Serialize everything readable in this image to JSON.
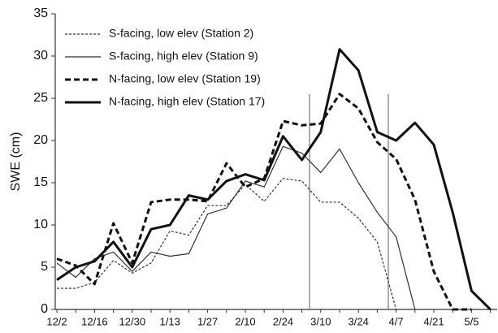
{
  "chart_data": {
    "type": "line",
    "y_label": "SWE (cm)",
    "categories": [
      "12/2",
      null,
      "12/16",
      null,
      "12/30",
      null,
      "1/13",
      null,
      "1/27",
      null,
      "2/10",
      null,
      "2/24",
      null,
      "3/10",
      null,
      "3/24",
      null,
      "4/7",
      null,
      "4/21",
      null,
      "5/5",
      null
    ],
    "ylim": [
      0,
      35
    ],
    "yticks": [
      0,
      5,
      10,
      15,
      20,
      25,
      30,
      35
    ],
    "series": [
      {
        "name": "S-facing, low elev (Station 2)",
        "color": "#333333",
        "style": "dashed",
        "weight": "thin",
        "values": [
          2.5,
          2.5,
          3.2,
          5.8,
          4.3,
          5.5,
          9.3,
          8.8,
          12.3,
          12.3,
          14.8,
          12.8,
          15.5,
          15.2,
          12.7,
          12.7,
          10.8,
          8,
          0,
          null,
          null,
          null,
          null,
          null
        ]
      },
      {
        "name": "S-facing, high elev (Station 9)",
        "color": "#333333",
        "style": "solid",
        "weight": "thin",
        "values": [
          5.5,
          3.8,
          6,
          6.8,
          4.5,
          6.8,
          6.3,
          6.6,
          11.3,
          12,
          15.2,
          14.5,
          19.3,
          18.5,
          16.2,
          19,
          15,
          11.5,
          8.6,
          0,
          null,
          null,
          null,
          null
        ]
      },
      {
        "name": "N-facing, low elev (Station 19)",
        "color": "#111111",
        "style": "dashed",
        "weight": "thick",
        "values": [
          6,
          5.2,
          3,
          10.2,
          5.5,
          12.7,
          13,
          13,
          12.8,
          17.3,
          14.5,
          15.5,
          22.3,
          21.8,
          22,
          25.5,
          23.8,
          19.8,
          17.8,
          13,
          4.5,
          0,
          0,
          null
        ]
      },
      {
        "name": "N-facing, high elev (Station 17)",
        "color": "#111111",
        "style": "solid",
        "weight": "thick",
        "values": [
          3.5,
          5,
          5.7,
          8,
          5,
          9.5,
          10,
          13.5,
          13,
          15.2,
          16,
          15.3,
          20.5,
          17.7,
          21,
          30.8,
          28.3,
          21,
          20,
          22.1,
          19.5,
          11.5,
          2.2,
          0
        ]
      }
    ]
  }
}
